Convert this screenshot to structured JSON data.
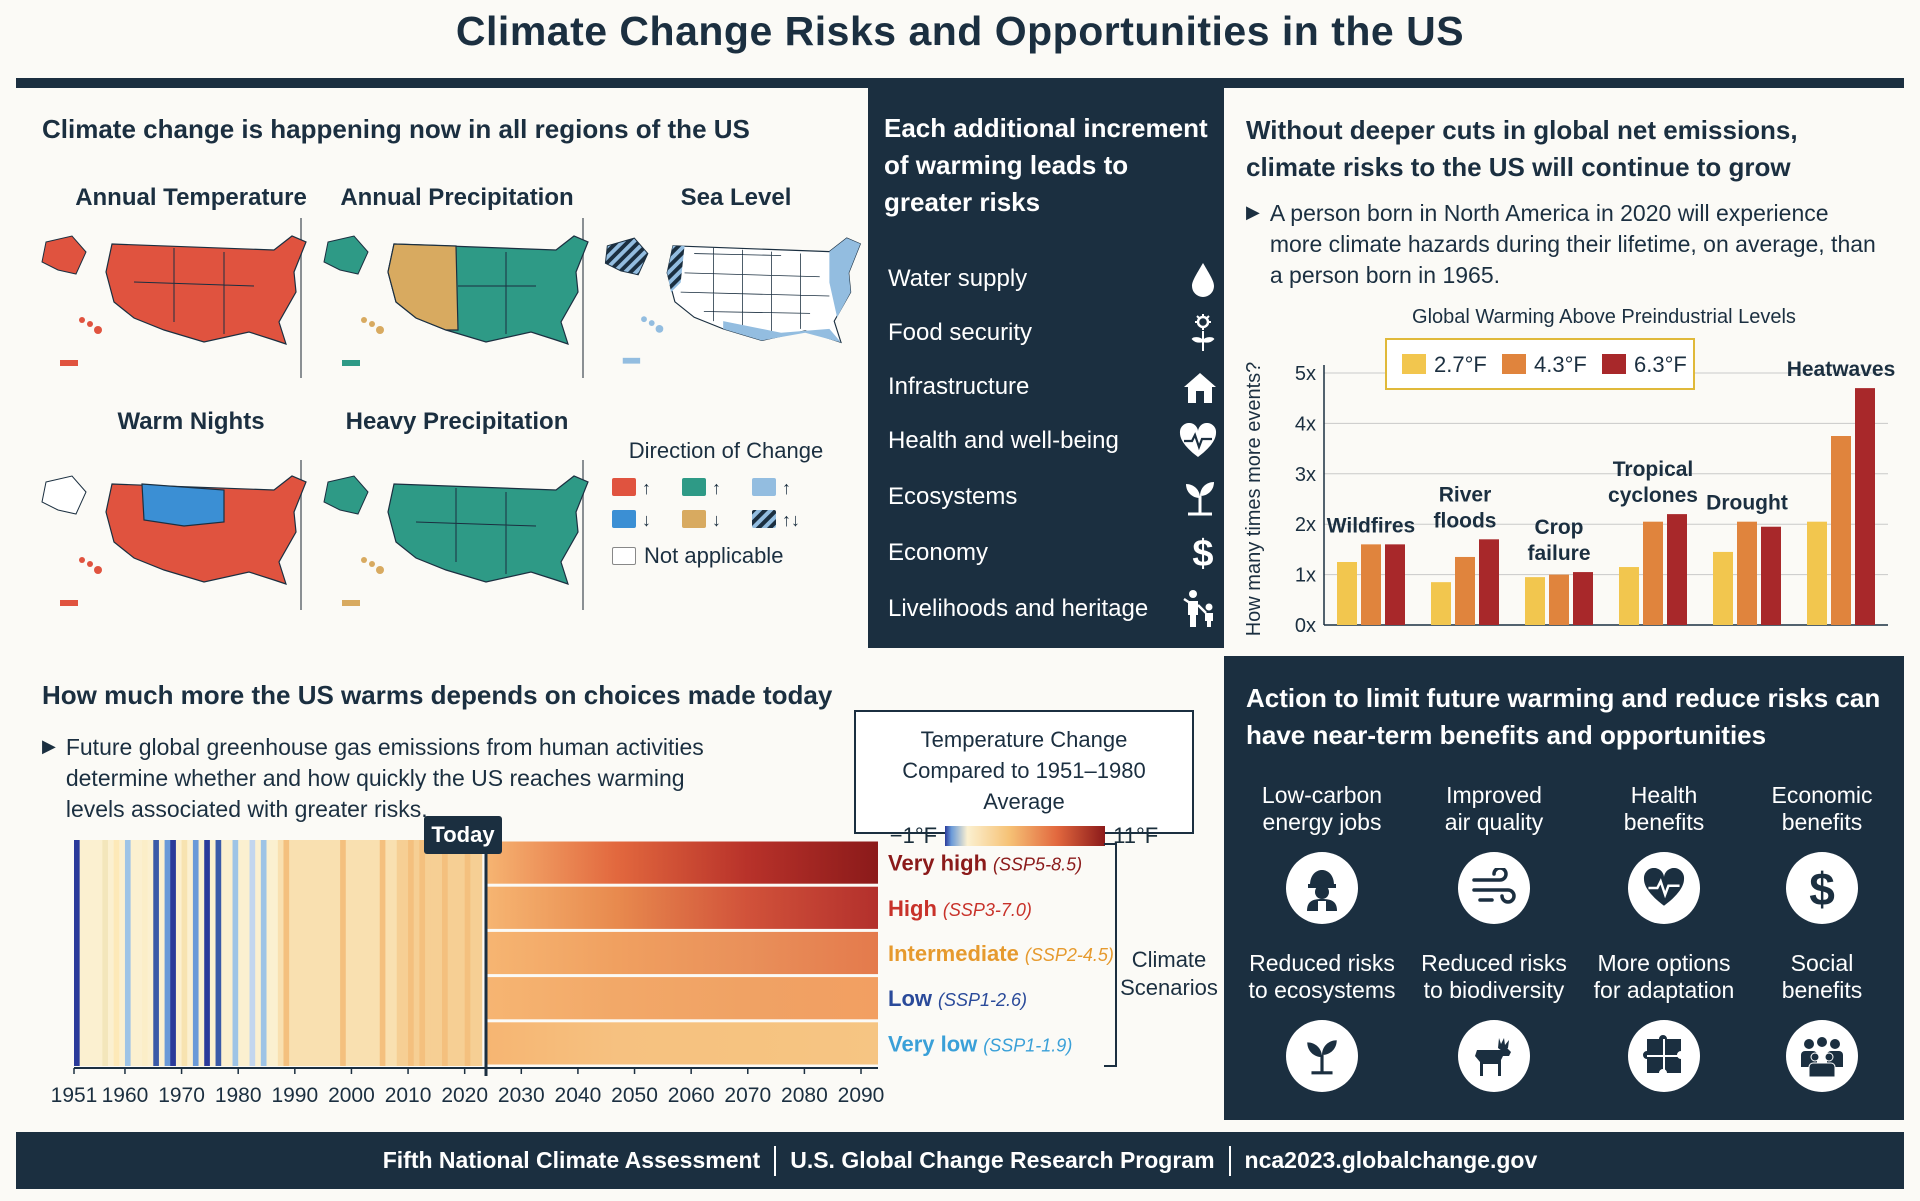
{
  "title": "Climate Change Risks and Opportunities in the US",
  "panel1": {
    "heading": "Climate change is happening now in all regions of the US",
    "maps": [
      {
        "label": "Annual Temperature"
      },
      {
        "label": "Annual Precipitation"
      },
      {
        "label": "Sea Level"
      },
      {
        "label": "Warm Nights"
      },
      {
        "label": "Heavy Precipitation"
      }
    ],
    "legend": {
      "title": "Direction of Change",
      "not_applicable": "Not applicable",
      "colors": {
        "red": "#e0533f",
        "teal": "#2e9a86",
        "lightblue": "#93bde0",
        "blue": "#3b8fd4",
        "tan": "#d8aa60"
      }
    }
  },
  "panel2": {
    "heading": "Each additional increment of warming leads to greater risks",
    "risks": [
      {
        "label": "Water supply",
        "icon": "water-drop-icon"
      },
      {
        "label": "Food security",
        "icon": "plant-sun-icon"
      },
      {
        "label": "Infrastructure",
        "icon": "house-icon"
      },
      {
        "label": "Health and well-being",
        "icon": "heart-pulse-icon"
      },
      {
        "label": "Ecosystems",
        "icon": "sprout-icon"
      },
      {
        "label": "Economy",
        "icon": "dollar-icon"
      },
      {
        "label": "Livelihoods and heritage",
        "icon": "family-icon"
      }
    ]
  },
  "panel3": {
    "heading": "Without deeper cuts in global net emissions, climate risks to the US will continue to grow",
    "bullet": "A person born in North America in 2020 will experience more climate hazards during their lifetime, on average, than a person born in 1965.",
    "chart_data": {
      "type": "bar",
      "title": "Global Warming Above Preindustrial Levels",
      "ylabel": "How many times more events?",
      "ylim": [
        0,
        5
      ],
      "yticks": [
        "0x",
        "1x",
        "2x",
        "3x",
        "4x",
        "5x"
      ],
      "categories": [
        "Wildfires",
        "River floods",
        "Crop failure",
        "Tropical cyclones",
        "Drought",
        "Heatwaves"
      ],
      "category_lines": [
        [
          "Wildfires"
        ],
        [
          "River",
          "floods"
        ],
        [
          "Crop",
          "failure"
        ],
        [
          "Tropical",
          "cyclones"
        ],
        [
          "Drought"
        ],
        [
          "Heatwaves"
        ]
      ],
      "series": [
        {
          "name": "2.7°F",
          "color": "#f2c64e",
          "values": [
            1.25,
            0.85,
            0.95,
            1.15,
            1.45,
            2.05
          ]
        },
        {
          "name": "4.3°F",
          "color": "#e0843d",
          "values": [
            1.6,
            1.35,
            1.0,
            2.05,
            2.05,
            3.75
          ]
        },
        {
          "name": "6.3°F",
          "color": "#a8282a",
          "values": [
            1.6,
            1.7,
            1.05,
            2.2,
            1.95,
            4.7
          ]
        }
      ],
      "grid": true,
      "legend": "top"
    }
  },
  "panel4": {
    "heading": "How much more the US warms depends on choices made today",
    "bullet": "Future global greenhouse gas emissions from human activities determine whether and how quickly the US reaches warming levels associated with greater risks.",
    "legend_title": "Temperature Change Compared to 1951–1980 Average",
    "legend_min": "−1°F",
    "legend_max": "11°F",
    "today_label": "Today",
    "scenarios_label": "Climate Scenarios",
    "scenarios": [
      {
        "name": "Very high",
        "code": "(SSP5-8.5)",
        "color": "#8b1a1a"
      },
      {
        "name": "High",
        "code": "(SSP3-7.0)",
        "color": "#c8322a"
      },
      {
        "name": "Intermediate",
        "code": "(SSP2-4.5)",
        "color": "#e69a2e"
      },
      {
        "name": "Low",
        "code": "(SSP1-2.6)",
        "color": "#2a4a9a"
      },
      {
        "name": "Very low",
        "code": "(SSP1-1.9)",
        "color": "#3aa0d8"
      }
    ],
    "xticks": [
      "1951",
      "1960",
      "1970",
      "1980",
      "1990",
      "2000",
      "2010",
      "2020",
      "2030",
      "2040",
      "2050",
      "2060",
      "2070",
      "2080",
      "2090"
    ]
  },
  "panel5": {
    "heading": "Action to limit future warming and reduce risks can have near-term benefits and opportunities",
    "benefits": [
      {
        "label": "Low-carbon energy jobs",
        "lines": [
          "Low-carbon",
          "energy jobs"
        ],
        "icon": "worker-icon"
      },
      {
        "label": "Improved air quality",
        "lines": [
          "Improved",
          "air quality"
        ],
        "icon": "wind-icon"
      },
      {
        "label": "Health benefits",
        "lines": [
          "Health",
          "benefits"
        ],
        "icon": "heart-pulse-icon"
      },
      {
        "label": "Economic benefits",
        "lines": [
          "Economic",
          "benefits"
        ],
        "icon": "dollar-icon"
      },
      {
        "label": "Reduced risks to ecosystems",
        "lines": [
          "Reduced risks",
          "to ecosystems"
        ],
        "icon": "sprout-icon"
      },
      {
        "label": "Reduced risks to biodiversity",
        "lines": [
          "Reduced risks",
          "to biodiversity"
        ],
        "icon": "moose-icon"
      },
      {
        "label": "More options for adaptation",
        "lines": [
          "More options",
          "for adaptation"
        ],
        "icon": "puzzle-icon"
      },
      {
        "label": "Social benefits",
        "lines": [
          "Social",
          "benefits"
        ],
        "icon": "people-icon"
      }
    ]
  },
  "footer": {
    "items": [
      "Fifth National Climate Assessment",
      "U.S. Global Change Research Program",
      "nca2023.globalchange.gov"
    ]
  }
}
